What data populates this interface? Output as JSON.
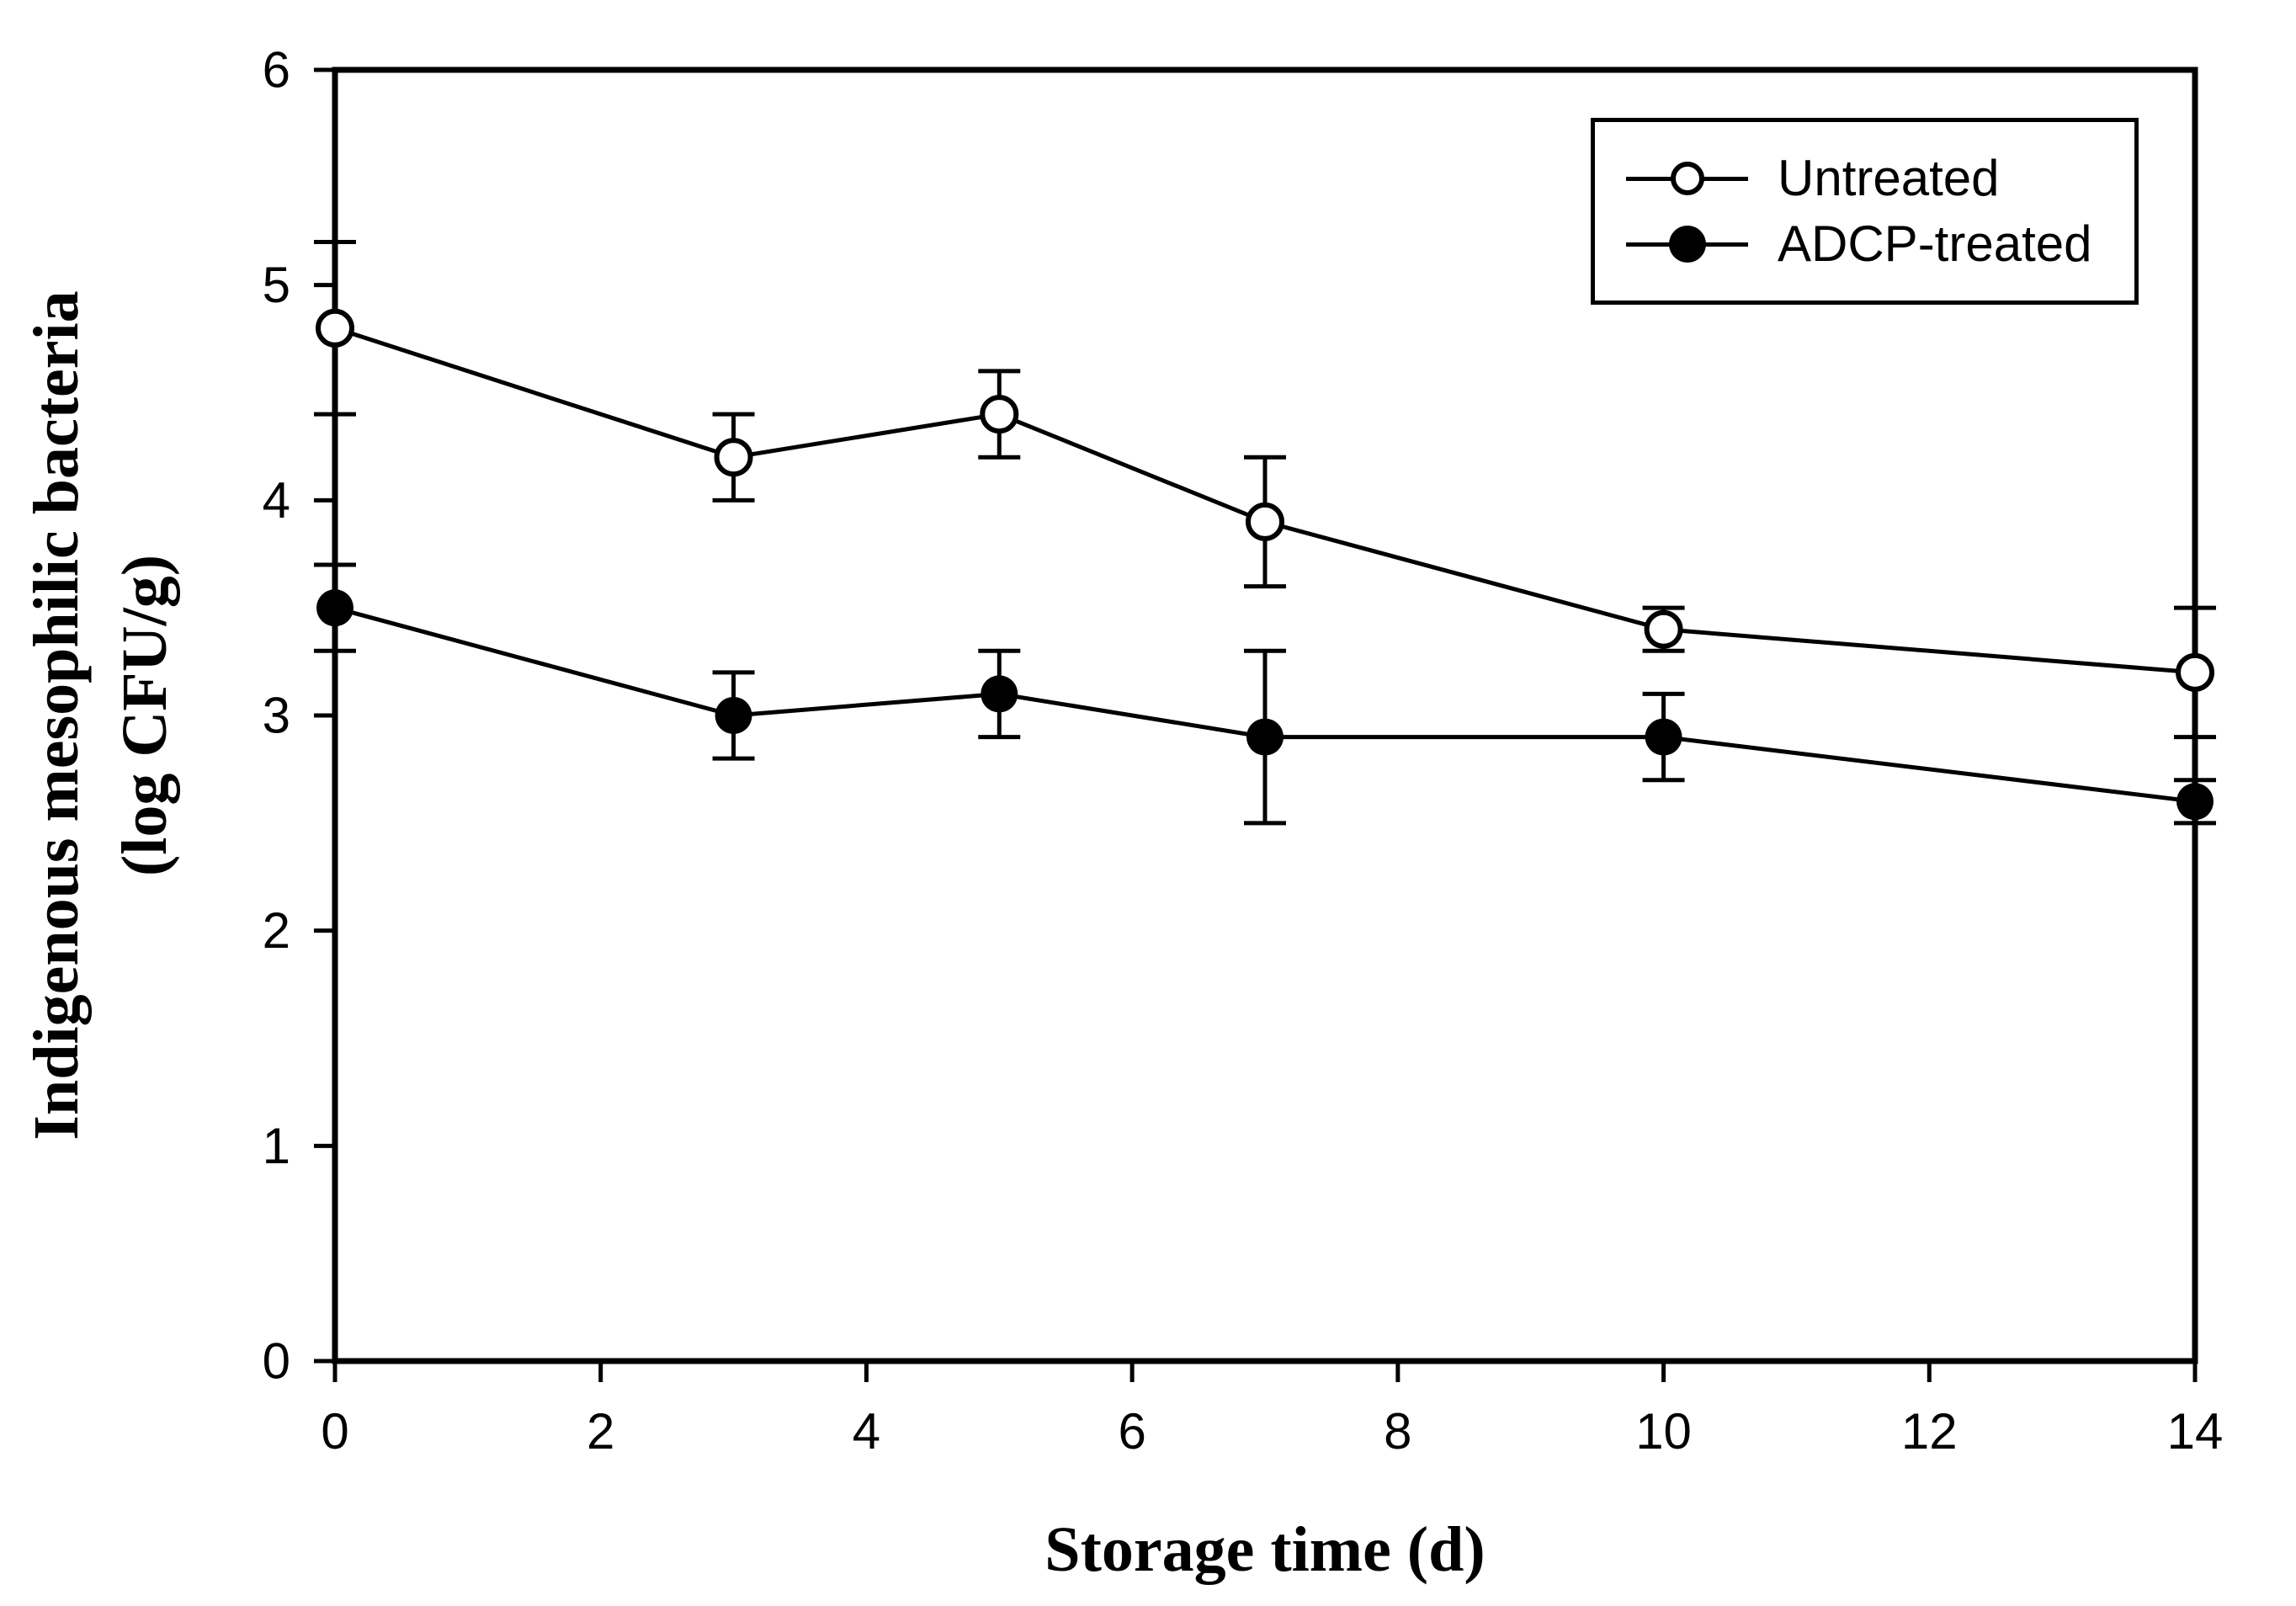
{
  "chart_data": {
    "type": "line",
    "title": "",
    "xlabel": "Storage time (d)",
    "ylabel_line1": "Indigenous mesophilic bacteria",
    "ylabel_line2": "(log CFU/g)",
    "xlim": [
      0,
      14
    ],
    "ylim": [
      0,
      6
    ],
    "x_major_ticks": [
      0,
      2,
      4,
      6,
      8,
      10,
      12,
      14
    ],
    "y_major_ticks": [
      0,
      1,
      2,
      3,
      4,
      5,
      6
    ],
    "grid": false,
    "x": [
      0,
      3,
      5,
      7,
      10,
      14
    ],
    "series": [
      {
        "name": "Untreated",
        "marker": "open-circle",
        "values": [
          4.8,
          4.2,
          4.4,
          3.9,
          3.4,
          3.2
        ],
        "errors": [
          0.4,
          0.2,
          0.2,
          0.3,
          0.1,
          0.3
        ]
      },
      {
        "name": "ADCP-treated",
        "marker": "filled-circle",
        "values": [
          3.5,
          3.0,
          3.1,
          2.9,
          2.9,
          2.6
        ],
        "errors": [
          0.2,
          0.2,
          0.2,
          0.4,
          0.2,
          0.1
        ]
      }
    ],
    "legend": {
      "position": "top-right",
      "entries": [
        "Untreated",
        "ADCP-treated"
      ]
    },
    "colors": {
      "foreground": "#000000",
      "background": "#ffffff"
    }
  }
}
